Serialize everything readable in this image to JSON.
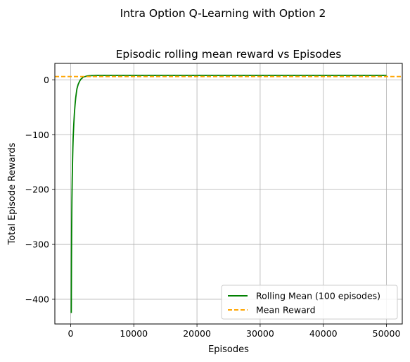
{
  "figure": {
    "suptitle": "Intra Option Q-Learning with Option 2"
  },
  "chart_data": {
    "type": "line",
    "title": "Episodic rolling mean reward vs Episodes",
    "xlabel": "Episodes",
    "ylabel": "Total Episode Rewards",
    "xlim": [
      -2500,
      52500
    ],
    "ylim": [
      -445,
      30
    ],
    "x_ticks": [
      0,
      10000,
      20000,
      30000,
      40000,
      50000
    ],
    "x_tick_labels": [
      "0",
      "10000",
      "20000",
      "30000",
      "40000",
      "50000"
    ],
    "y_ticks": [
      0,
      -100,
      -200,
      -300,
      -400
    ],
    "y_tick_labels": [
      "0",
      "−100",
      "−200",
      "−300",
      "−400"
    ],
    "grid": true,
    "legend_position": "lower-right",
    "series": [
      {
        "name": "Rolling Mean (100 episodes)",
        "style": "solid",
        "color": "#008000",
        "x": [
          100,
          130,
          160,
          200,
          250,
          300,
          350,
          400,
          500,
          600,
          700,
          800,
          900,
          1000,
          1200,
          1400,
          1600,
          1800,
          2000,
          2300,
          2600,
          3000,
          4000,
          6000,
          10000,
          20000,
          30000,
          40000,
          50000
        ],
        "y": [
          -425,
          -330,
          -270,
          -220,
          -180,
          -150,
          -125,
          -105,
          -80,
          -60,
          -45,
          -33,
          -24,
          -16,
          -8,
          -3,
          1,
          3,
          5,
          6,
          7,
          7.5,
          8,
          8,
          8,
          8,
          8,
          8,
          8
        ]
      },
      {
        "name": "Mean Reward",
        "style": "dashed",
        "color": "#FFA500",
        "constant_y": 6
      }
    ]
  }
}
